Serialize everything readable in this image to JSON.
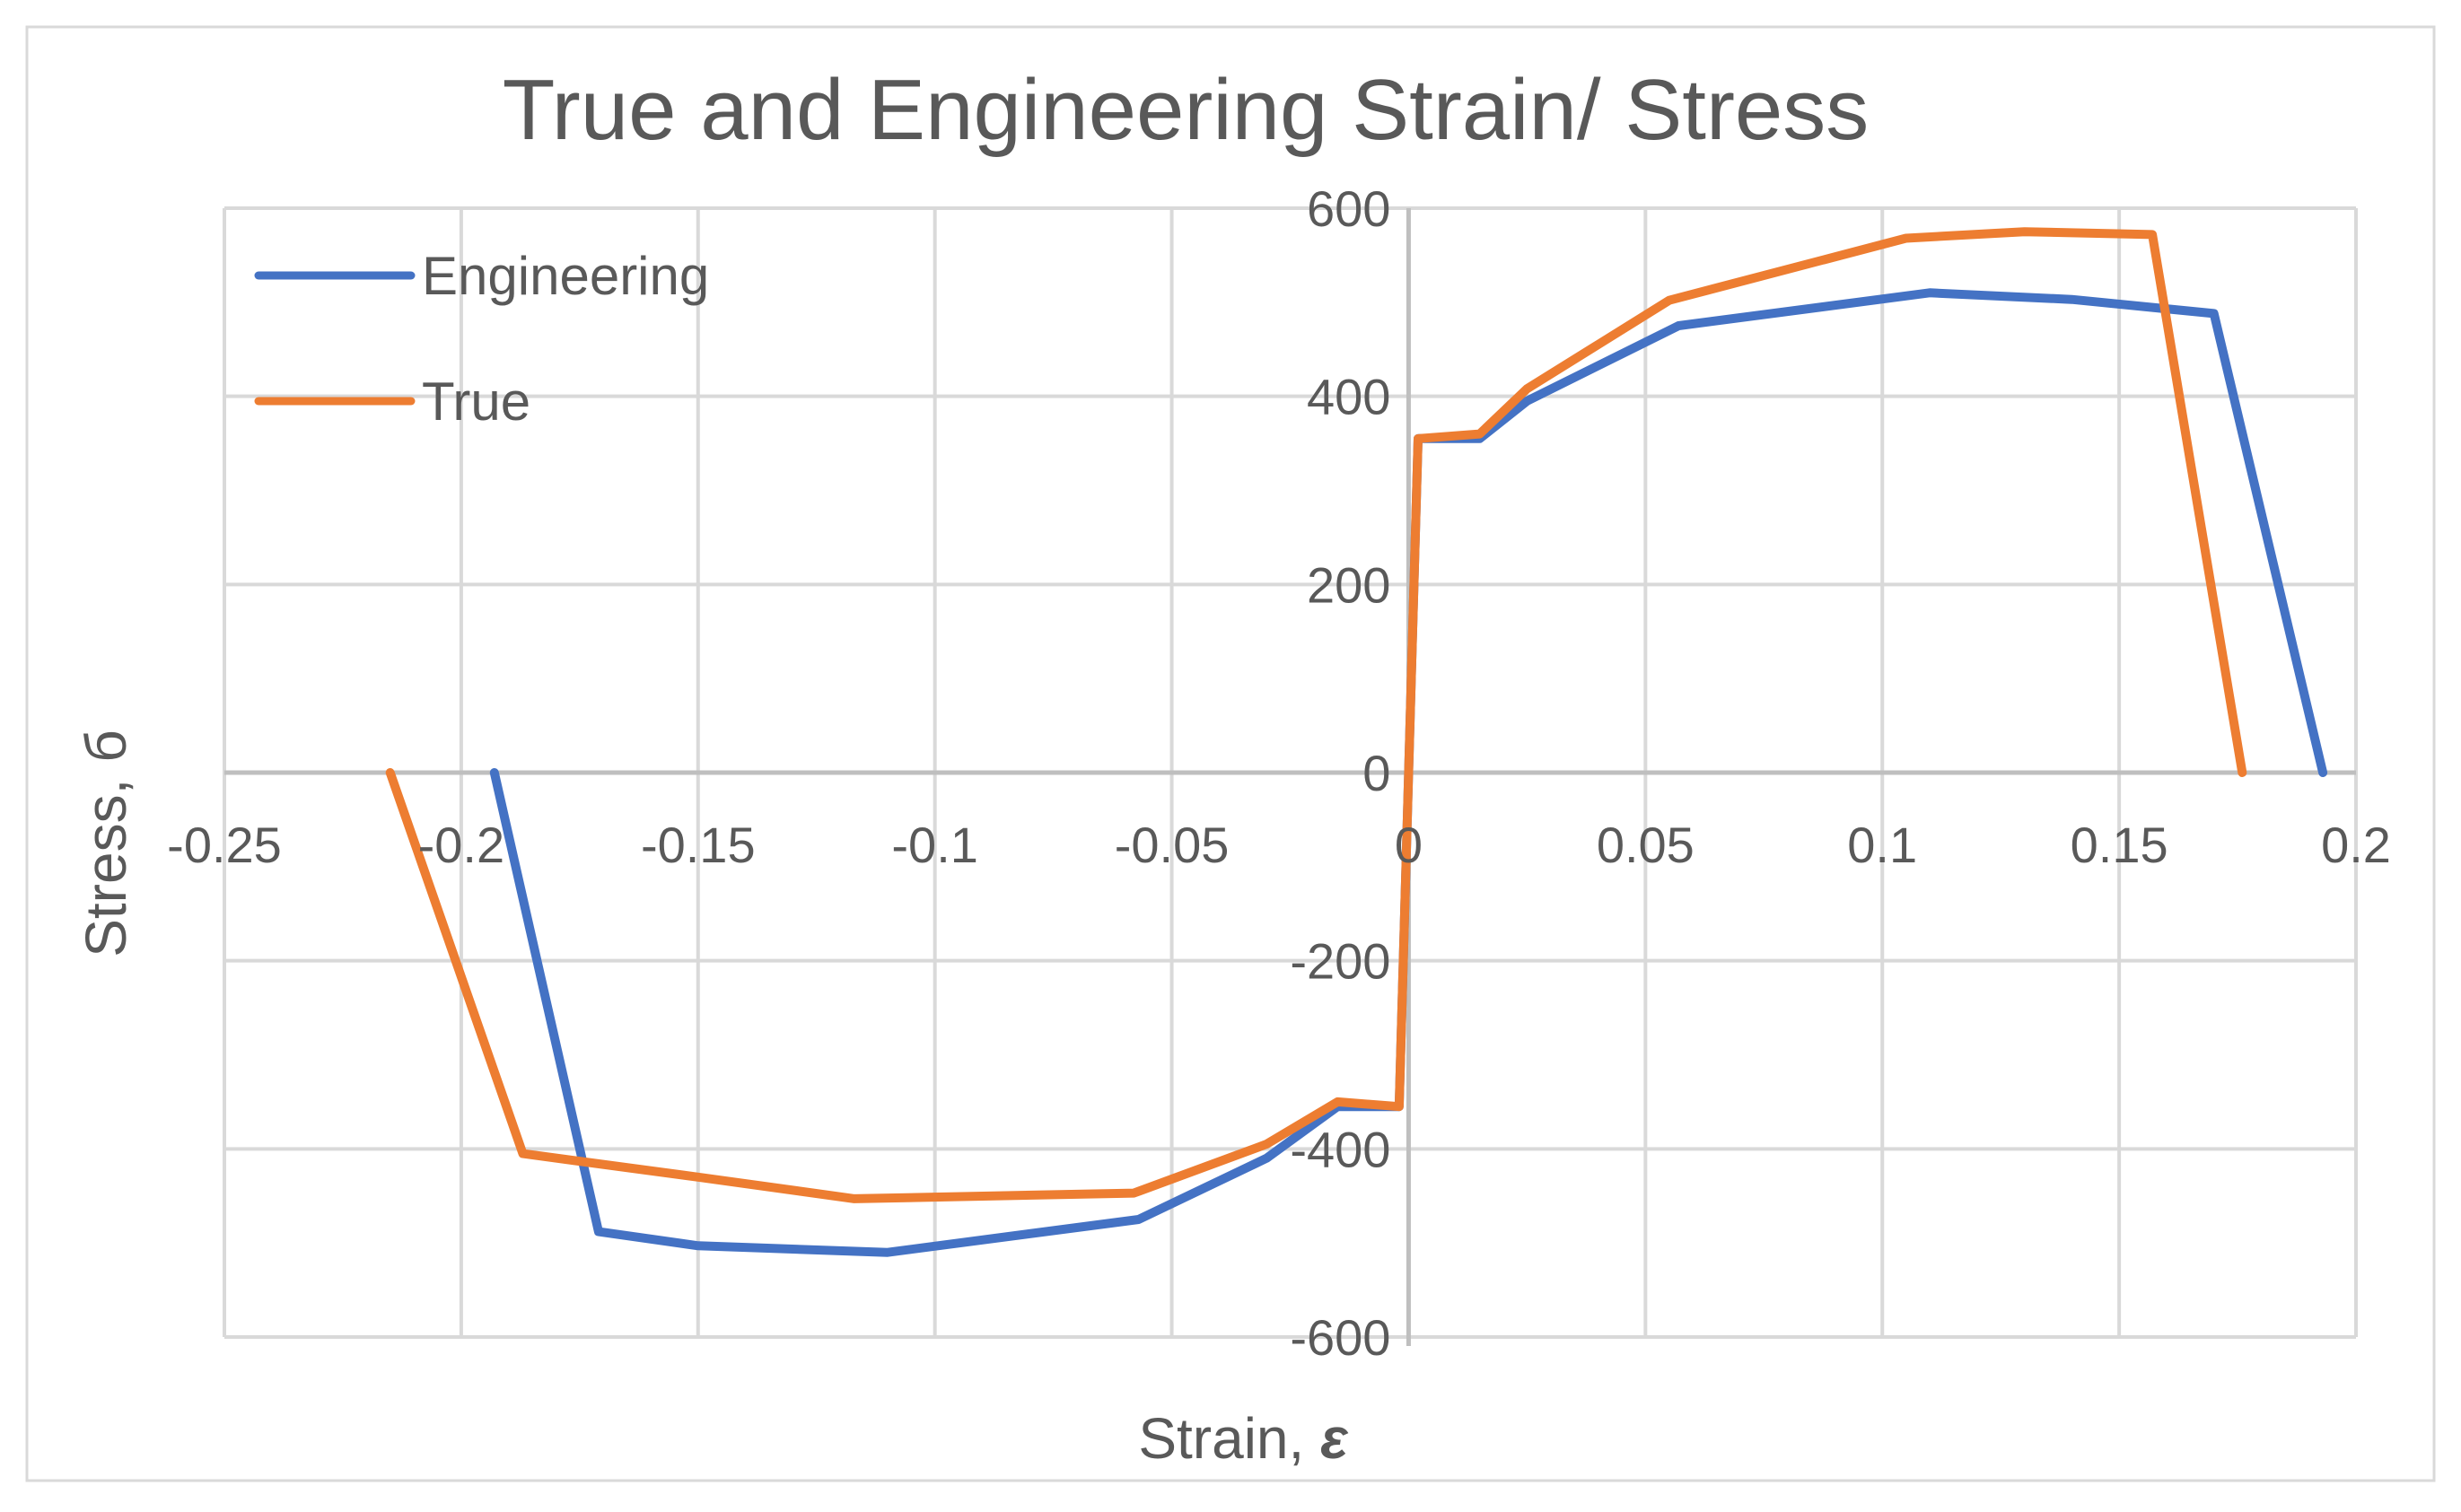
{
  "colors": {
    "engineering": "#4472C4",
    "true": "#ED7D31",
    "grid": "#D9D9D9",
    "axis": "#BFBFBF",
    "text": "#595959",
    "border": "#D9D9D9"
  },
  "chart_data": {
    "type": "line",
    "title": "True and Engineering Strain/ Stress",
    "xlabel": "Strain, ",
    "xlabel_symbol": "ε",
    "ylabel": "Stress, б",
    "xlim": [
      -0.25,
      0.2
    ],
    "ylim": [
      -600,
      600
    ],
    "xticks": [
      -0.25,
      -0.2,
      -0.15,
      -0.1,
      -0.05,
      0,
      0.05,
      0.1,
      0.15,
      0.2
    ],
    "xtick_labels": [
      "-0.25",
      "-0.2",
      "-0.15",
      "-0.1",
      "-0.05",
      "0",
      "0.05",
      "0.1",
      "0.15",
      "0.2"
    ],
    "yticks": [
      -600,
      -400,
      -200,
      0,
      200,
      400,
      600
    ],
    "ytick_labels": [
      "-600",
      "-400",
      "-200",
      "0",
      "200",
      "400",
      "600"
    ],
    "grid": true,
    "legend_position": "top-left",
    "series": [
      {
        "name": "Engineering",
        "color_key": "engineering",
        "points": [
          [
            -0.193,
            0
          ],
          [
            -0.171,
            -488
          ],
          [
            -0.15,
            -503
          ],
          [
            -0.11,
            -510
          ],
          [
            -0.057,
            -475
          ],
          [
            -0.03,
            -410
          ],
          [
            -0.015,
            -355
          ],
          [
            -0.002,
            -355
          ],
          [
            0.002,
            355
          ],
          [
            0.015,
            355
          ],
          [
            0.025,
            395
          ],
          [
            0.057,
            475
          ],
          [
            0.11,
            510
          ],
          [
            0.14,
            503
          ],
          [
            0.17,
            488
          ],
          [
            0.193,
            0
          ]
        ]
      },
      {
        "name": "True",
        "color_key": "true",
        "points": [
          [
            -0.215,
            0
          ],
          [
            -0.187,
            -405
          ],
          [
            -0.15,
            -430
          ],
          [
            -0.117,
            -453
          ],
          [
            -0.058,
            -447
          ],
          [
            -0.03,
            -395
          ],
          [
            -0.015,
            -350
          ],
          [
            -0.002,
            -355
          ],
          [
            0.002,
            355
          ],
          [
            0.015,
            360
          ],
          [
            0.025,
            408
          ],
          [
            0.055,
            502
          ],
          [
            0.105,
            568
          ],
          [
            0.13,
            575
          ],
          [
            0.157,
            572
          ],
          [
            0.176,
            0
          ]
        ]
      }
    ]
  }
}
